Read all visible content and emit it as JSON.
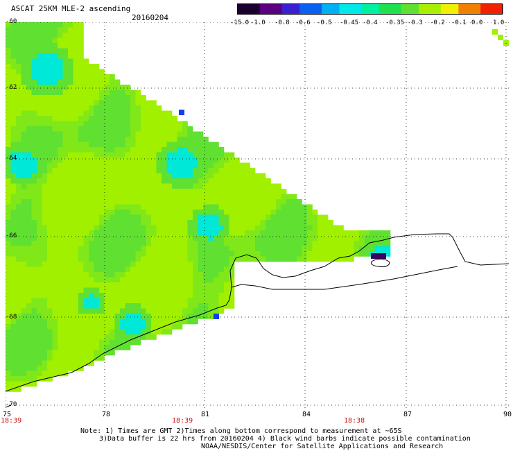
{
  "header": {
    "title": "ASCAT 25KM MLE-2 ascending",
    "date": "20160204"
  },
  "colorbar": {
    "labels": [
      "-15.0",
      "-1.0",
      "-0.8",
      "-0.6",
      "-0.5",
      "-0.45",
      "-0.4",
      "-0.35",
      "-0.3",
      "-0.2",
      "-0.1",
      "0.0",
      "1.0"
    ],
    "colors": [
      "#1a0030",
      "#5a0080",
      "#3a20d0",
      "#0a60f0",
      "#00b0f0",
      "#00e8e8",
      "#00f0a0",
      "#20e050",
      "#60e030",
      "#a8f000",
      "#f0f000",
      "#f08000",
      "#f02000"
    ]
  },
  "axes": {
    "lat_labels": [
      "-60",
      "-62",
      "-64",
      "-66",
      "-68",
      "-70"
    ],
    "lon_labels": [
      "75",
      "78",
      "81",
      "84",
      "87",
      "90"
    ],
    "time_labels": [
      "18:39",
      "18:39",
      "18:38"
    ]
  },
  "notes": [
    "Note: 1) Times are GMT 2)Times along bottom correspond to measurement at ~65S",
    "3)Data buffer is 22 hrs from 20160204 4) Black wind barbs indicate possible contamination",
    "NOAA/NESDIS/Center for Satellite Applications and Research"
  ],
  "palette": {
    "dominant_green": "#a0f000",
    "mid_green": "#60e030",
    "teal": "#00e8d8",
    "dark_blue": "#1040f0",
    "dark_purple": "#3a0060",
    "coastline": "#000000",
    "time_label_red": "#cc1111"
  }
}
